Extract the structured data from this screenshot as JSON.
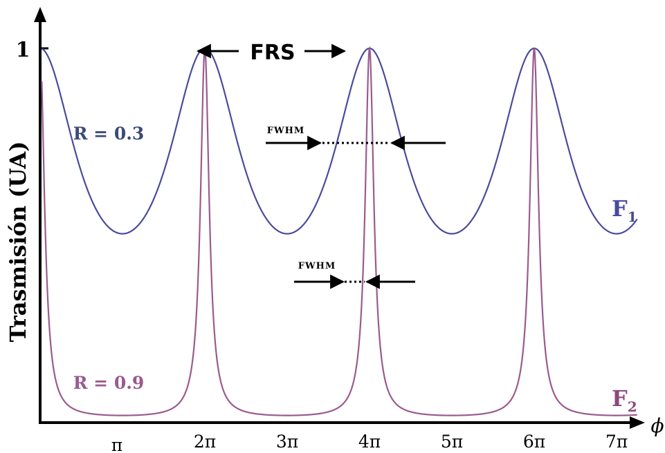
{
  "chart_data": {
    "type": "line",
    "ylabel": "Trasmisión (UA)",
    "xlabel": "ϕ",
    "x_ticks": [
      {
        "value": 1,
        "label": "π"
      },
      {
        "value": 2,
        "label": "2π"
      },
      {
        "value": 3,
        "label": "3π"
      },
      {
        "value": 4,
        "label": "4π"
      },
      {
        "value": 5,
        "label": "5π"
      },
      {
        "value": 6,
        "label": "6π"
      },
      {
        "value": 7,
        "label": "7π"
      }
    ],
    "x_unit": "π",
    "xlim": [
      0,
      7.5
    ],
    "y_ticks": [
      {
        "value": 1,
        "label": "1"
      }
    ],
    "ylim": [
      0,
      1.1
    ],
    "grid": false,
    "series": [
      {
        "name": "F",
        "name_sub": "1",
        "label": "R = 0.3",
        "color": "#4a4a9c",
        "reflectivity": 0.3,
        "peaks_at": [
          2,
          4,
          6
        ],
        "min_value": 0.5
      },
      {
        "name": "F",
        "name_sub": "2",
        "label": "R = 0.9",
        "color": "#9a5a8e",
        "reflectivity": 0.9,
        "peaks_at": [
          2,
          4,
          6
        ],
        "min_value": 0.01
      }
    ],
    "annotations": {
      "frs": "FRS",
      "fwhm_top": "FWHM",
      "fwhm_bottom": "FWHM"
    }
  }
}
